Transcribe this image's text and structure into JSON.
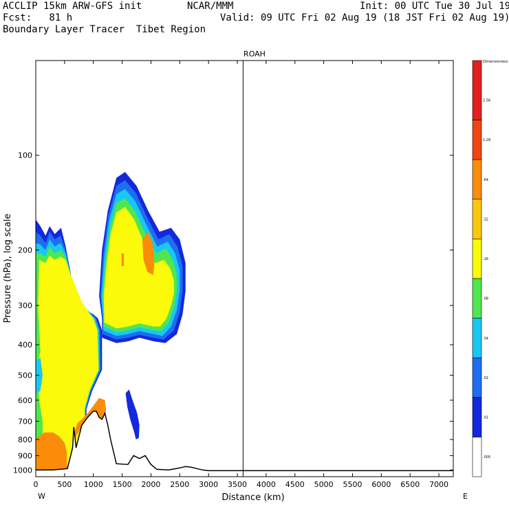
{
  "header": {
    "line1_left": "ACCLIP 15km ARW-GFS init",
    "line1_mid": "NCAR/MMM",
    "line1_right": "Init: 00 UTC Tue 30 Jul 19",
    "line2_left": "Fcst:   81 h",
    "line2_right": "Valid: 09 UTC Fri 02 Aug 19 (18 JST Fri 02 Aug 19)",
    "line3_left": "Boundary Layer Tracer  Tibet Region"
  },
  "chart_data": {
    "type": "heatmap",
    "title": "ROAH",
    "xlabel": "Distance (km)",
    "ylabel": "Pressure (hPa), log scale",
    "x_ticks": [
      0,
      500,
      1000,
      1500,
      2000,
      2500,
      3000,
      3500,
      4000,
      4500,
      5000,
      5500,
      6000,
      6500,
      7000
    ],
    "y_ticks": [
      100,
      200,
      300,
      400,
      500,
      600,
      700,
      800,
      900,
      1000
    ],
    "y_scale": "log",
    "xlim": [
      0,
      7250
    ],
    "ylim": [
      1050,
      50
    ],
    "direction_left": "W",
    "direction_right": "E",
    "marker_line_x_km": 3600,
    "colorbar": {
      "title": "Dimensionless",
      "levels": [
        ".005",
        ".01",
        ".02",
        ".04",
        ".08",
        ".16",
        ".32",
        ".64",
        "1.28",
        "2.56"
      ],
      "colors": [
        "#ffffff",
        "#1428dc",
        "#1e6ef0",
        "#19c8f0",
        "#50e650",
        "#fafa0a",
        "#fac80a",
        "#fa8c0a",
        "#f04614",
        "#e61e1e"
      ]
    },
    "plumes": [
      {
        "name": "western",
        "lower_color": "#fa8c0a",
        "layer": "yellow",
        "x_km": [
          0,
          900
        ],
        "p_hPa": [
          1000,
          180
        ]
      },
      {
        "name": "upper",
        "layer": "yellow",
        "x_km": [
          650,
          2700
        ],
        "p_hPa": [
          380,
          115
        ]
      },
      {
        "name": "small_blue",
        "layer": "blue",
        "x_km": [
          1550,
          1800
        ],
        "p_hPa": [
          780,
          550
        ]
      }
    ],
    "terrain": {
      "x_km": [
        0,
        300,
        550,
        640,
        660,
        700,
        800,
        900,
        1000,
        1050,
        1100,
        1150,
        1200,
        1250,
        1300,
        1400,
        1600,
        1700,
        1800,
        1900,
        2000,
        2100,
        2300,
        2500,
        2600,
        2700,
        2800,
        2900,
        3000,
        5000,
        6800,
        7250
      ],
      "p_hPa": [
        1000,
        1000,
        990,
        850,
        730,
        850,
        720,
        680,
        650,
        650,
        680,
        690,
        660,
        720,
        800,
        955,
        960,
        900,
        920,
        900,
        960,
        995,
        1000,
        985,
        975,
        980,
        990,
        1000,
        1005,
        1005,
        1005,
        1005
      ]
    }
  }
}
